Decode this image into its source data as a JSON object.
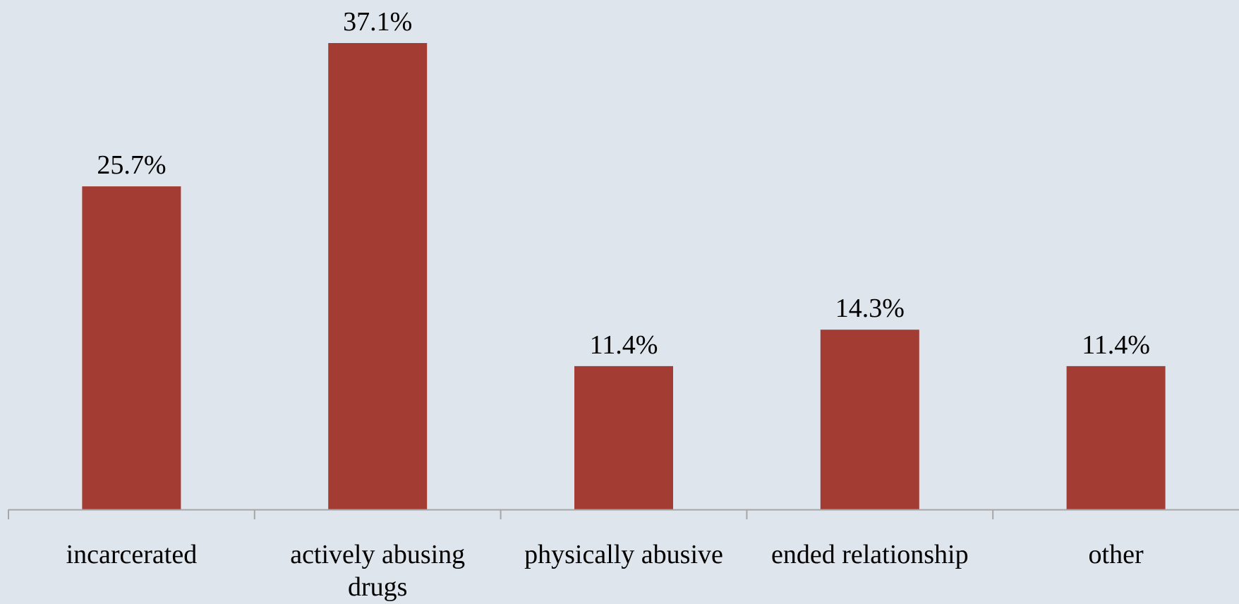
{
  "chart_data": {
    "type": "bar",
    "categories": [
      [
        "incarcerated"
      ],
      [
        "actively abusing",
        "drugs"
      ],
      [
        "physically abusive"
      ],
      [
        "ended relationship"
      ],
      [
        "other"
      ]
    ],
    "values": [
      25.7,
      37.1,
      11.4,
      14.3,
      11.4
    ],
    "value_labels": [
      "25.7%",
      "37.1%",
      "11.4%",
      "14.3%",
      "11.4%"
    ],
    "unit": "%",
    "ylim": [
      0,
      40
    ],
    "grid": false,
    "legend": "none",
    "colors": {
      "bar": "#a33c33",
      "axis": "#a6a6a6",
      "background": "#dfe5ed"
    }
  }
}
